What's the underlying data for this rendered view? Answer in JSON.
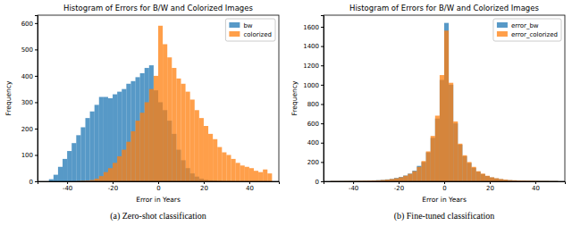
{
  "chart_data": [
    {
      "type": "histogram",
      "title": "Histogram of Errors for B/W and Colorized Images",
      "x_label": "Error in Years",
      "y_label": "Frequency",
      "caption": "(a) Zero-shot classification",
      "bins": [
        -50,
        -48,
        -46,
        -44,
        -42,
        -40,
        -38,
        -36,
        -34,
        -32,
        -30,
        -28,
        -26,
        -24,
        -22,
        -20,
        -18,
        -16,
        -14,
        -12,
        -10,
        -8,
        -6,
        -4,
        -2,
        0,
        2,
        4,
        6,
        8,
        10,
        12,
        14,
        16,
        18,
        20,
        22,
        24,
        26,
        28,
        30,
        32,
        34,
        36,
        38,
        40,
        42,
        44,
        46,
        48,
        50
      ],
      "series": [
        {
          "name": "bw",
          "color": "#1f77b4",
          "values": [
            0,
            8,
            25,
            55,
            85,
            115,
            145,
            175,
            205,
            240,
            265,
            290,
            320,
            320,
            315,
            330,
            340,
            350,
            370,
            380,
            395,
            410,
            430,
            440,
            345,
            300,
            270,
            230,
            180,
            120,
            80,
            50,
            30,
            18,
            10,
            6,
            4,
            3,
            2,
            1,
            1,
            0,
            0,
            0,
            0,
            0,
            0,
            0,
            0,
            0
          ]
        },
        {
          "name": "colorized",
          "color": "#ff7f0e",
          "values": [
            0,
            0,
            0,
            0,
            0,
            0,
            0,
            1,
            2,
            3,
            5,
            10,
            20,
            35,
            50,
            70,
            95,
            120,
            150,
            190,
            230,
            260,
            300,
            350,
            400,
            590,
            520,
            470,
            430,
            390,
            370,
            340,
            310,
            270,
            240,
            210,
            180,
            160,
            130,
            110,
            100,
            85,
            70,
            60,
            55,
            50,
            40,
            35,
            45,
            30
          ]
        }
      ],
      "xlim": [
        -53,
        53
      ],
      "xticks": [
        -40,
        -20,
        0,
        20,
        40
      ],
      "ylim": [
        0,
        630
      ],
      "yticks": [
        0,
        100,
        200,
        300,
        400,
        500,
        600
      ],
      "legend": "upper right"
    },
    {
      "type": "histogram",
      "title": "Histogram of Errors for B/W and Colorized Images",
      "x_label": "Error in Years",
      "y_label": "Frequency",
      "caption": "(b) Fine-tuned classification",
      "bins": [
        -50,
        -48,
        -46,
        -44,
        -42,
        -40,
        -38,
        -36,
        -34,
        -32,
        -30,
        -28,
        -26,
        -24,
        -22,
        -20,
        -18,
        -16,
        -14,
        -12,
        -10,
        -8,
        -6,
        -4,
        -2,
        0,
        2,
        4,
        6,
        8,
        10,
        12,
        14,
        16,
        18,
        20,
        22,
        24,
        26,
        28,
        30,
        32,
        34,
        36,
        38,
        40,
        42,
        44,
        46,
        48,
        50
      ],
      "series": [
        {
          "name": "error_bw",
          "color": "#1f77b4",
          "values": [
            3,
            3,
            4,
            4,
            5,
            5,
            6,
            7,
            8,
            10,
            12,
            15,
            20,
            25,
            35,
            45,
            60,
            80,
            110,
            160,
            200,
            300,
            450,
            650,
            1050,
            1640,
            1000,
            600,
            380,
            260,
            190,
            140,
            100,
            75,
            55,
            40,
            30,
            22,
            16,
            12,
            10,
            8,
            7,
            6,
            5,
            5,
            4,
            4,
            3,
            3
          ]
        },
        {
          "name": "error_colorized",
          "color": "#ff7f0e",
          "values": [
            3,
            3,
            3,
            4,
            4,
            5,
            6,
            7,
            8,
            9,
            11,
            14,
            18,
            24,
            32,
            42,
            58,
            78,
            105,
            150,
            210,
            310,
            470,
            680,
            1100,
            1560,
            1020,
            620,
            390,
            270,
            200,
            150,
            105,
            80,
            58,
            42,
            32,
            24,
            18,
            13,
            11,
            9,
            8,
            7,
            6,
            5,
            4,
            4,
            3,
            3
          ]
        }
      ],
      "xlim": [
        -53,
        53
      ],
      "xticks": [
        -40,
        -20,
        0,
        20,
        40
      ],
      "ylim": [
        0,
        1720
      ],
      "yticks": [
        0,
        200,
        400,
        600,
        800,
        1000,
        1200,
        1400,
        1600
      ],
      "legend": "upper right"
    }
  ]
}
